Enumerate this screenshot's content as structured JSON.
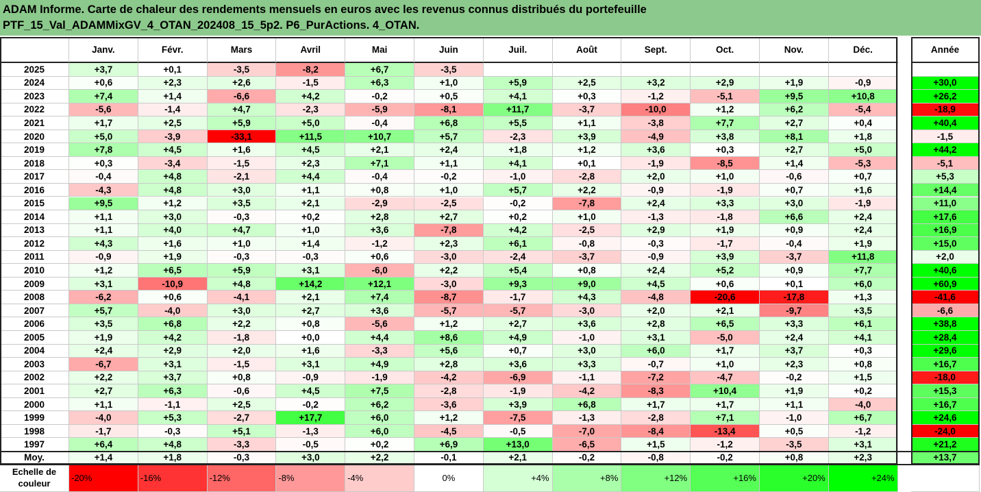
{
  "title": {
    "line1": "ADAM Informe. Carte de chaleur des rendements mensuels en euros avec les revenus connus distribués du portefeuille",
    "line2": "PTF_15_Val_ADAMMixGV_4_OTAN_202408_15_5p2. P6_PurActions. 4_OTAN."
  },
  "colors": {
    "header_band": "#8cc98c",
    "negative_max": "#ff0000",
    "neutral": "#ffffff",
    "positive_max": "#00ff00"
  },
  "chart_data": {
    "type": "heatmap",
    "months": [
      "Janv.",
      "Févr.",
      "Mars",
      "Avril",
      "Mai",
      "Juin",
      "Juil.",
      "Août",
      "Sept.",
      "Oct.",
      "Nov.",
      "Déc."
    ],
    "year_column_label": "Année",
    "rows": [
      {
        "year": "2025",
        "values": [
          "+3,7",
          "+0,1",
          "-3,5",
          "-8,2",
          "+6,7",
          "-3,5",
          "",
          "",
          "",
          "",
          "",
          ""
        ],
        "annual": ""
      },
      {
        "year": "2024",
        "values": [
          "+0,6",
          "+2,3",
          "+2,6",
          "-1,5",
          "+6,3",
          "+1,0",
          "+5,9",
          "+2,5",
          "+3,2",
          "+2,9",
          "+1,9",
          "-0,9"
        ],
        "annual": "+30,0"
      },
      {
        "year": "2023",
        "values": [
          "+7,4",
          "+1,4",
          "-6,6",
          "+4,2",
          "-0,2",
          "+0,5",
          "+4,1",
          "+0,3",
          "-1,2",
          "-5,1",
          "+9,5",
          "+10,8"
        ],
        "annual": "+26,2"
      },
      {
        "year": "2022",
        "values": [
          "-5,6",
          "-1,4",
          "+4,7",
          "-2,3",
          "-5,9",
          "-8,1",
          "+11,7",
          "-3,7",
          "-10,0",
          "+1,2",
          "+6,2",
          "-5,4"
        ],
        "annual": "-18,9"
      },
      {
        "year": "2021",
        "values": [
          "+1,7",
          "+2,5",
          "+5,9",
          "+5,0",
          "-0,4",
          "+6,8",
          "+5,5",
          "+1,1",
          "-3,8",
          "+7,7",
          "+2,7",
          "+0,4"
        ],
        "annual": "+40,4"
      },
      {
        "year": "2020",
        "values": [
          "+5,0",
          "-3,9",
          "-33,1",
          "+11,5",
          "+10,7",
          "+5,7",
          "-2,3",
          "+3,9",
          "-4,9",
          "+3,8",
          "+8,1",
          "+1,8"
        ],
        "annual": "-1,5"
      },
      {
        "year": "2019",
        "values": [
          "+7,8",
          "+4,5",
          "+1,6",
          "+4,5",
          "+2,1",
          "+2,4",
          "+1,8",
          "+1,2",
          "+3,6",
          "+0,3",
          "+2,7",
          "+5,0"
        ],
        "annual": "+44,2"
      },
      {
        "year": "2018",
        "values": [
          "+0,3",
          "-3,4",
          "-1,5",
          "+2,3",
          "+7,1",
          "+1,1",
          "+4,1",
          "+0,1",
          "-1,9",
          "-8,5",
          "+1,4",
          "-5,3"
        ],
        "annual": "-5,1"
      },
      {
        "year": "2017",
        "values": [
          "-0,4",
          "+4,8",
          "-2,1",
          "+4,4",
          "-0,4",
          "-0,2",
          "-1,0",
          "-2,8",
          "+2,0",
          "+1,0",
          "-0,6",
          "+0,7"
        ],
        "annual": "+5,3"
      },
      {
        "year": "2016",
        "values": [
          "-4,3",
          "+4,8",
          "+3,0",
          "+1,1",
          "+0,8",
          "+1,0",
          "+5,7",
          "+2,2",
          "-0,9",
          "-1,9",
          "+0,7",
          "+1,6"
        ],
        "annual": "+14,4"
      },
      {
        "year": "2015",
        "values": [
          "+9,5",
          "+1,2",
          "+3,5",
          "+2,1",
          "-2,9",
          "-2,5",
          "-0,2",
          "-7,8",
          "+2,4",
          "+3,3",
          "+3,0",
          "-1,9"
        ],
        "annual": "+11,0"
      },
      {
        "year": "2014",
        "values": [
          "+1,1",
          "+3,0",
          "-0,3",
          "+0,2",
          "+2,8",
          "+2,7",
          "+0,2",
          "+1,0",
          "-1,3",
          "-1,8",
          "+6,6",
          "+2,4"
        ],
        "annual": "+17,6"
      },
      {
        "year": "2013",
        "values": [
          "+1,1",
          "+4,0",
          "+4,7",
          "+1,0",
          "+3,6",
          "-7,8",
          "+4,2",
          "-2,5",
          "+2,9",
          "+1,9",
          "+0,9",
          "+2,4"
        ],
        "annual": "+16,9"
      },
      {
        "year": "2012",
        "values": [
          "+4,3",
          "+1,6",
          "+1,0",
          "+1,4",
          "-1,2",
          "+2,3",
          "+6,1",
          "-0,8",
          "-0,3",
          "-1,7",
          "-0,4",
          "+1,9"
        ],
        "annual": "+15,0"
      },
      {
        "year": "2011",
        "values": [
          "-0,9",
          "+1,9",
          "-0,3",
          "-0,3",
          "+0,6",
          "-3,0",
          "-2,4",
          "-3,7",
          "-0,9",
          "+3,9",
          "-3,7",
          "+11,8"
        ],
        "annual": "+2,0"
      },
      {
        "year": "2010",
        "values": [
          "+1,2",
          "+6,5",
          "+5,9",
          "+3,1",
          "-6,0",
          "+2,2",
          "+5,4",
          "+0,8",
          "+2,4",
          "+5,2",
          "+0,9",
          "+7,7"
        ],
        "annual": "+40,6"
      },
      {
        "year": "2009",
        "values": [
          "+3,1",
          "-10,9",
          "+4,8",
          "+14,2",
          "+12,1",
          "-3,0",
          "+9,3",
          "+9,0",
          "+4,5",
          "+0,6",
          "+0,1",
          "+6,0"
        ],
        "annual": "+60,9"
      },
      {
        "year": "2008",
        "values": [
          "-6,2",
          "+0,6",
          "-4,1",
          "+2,1",
          "+7,4",
          "-8,7",
          "-1,7",
          "+4,3",
          "-4,8",
          "-20,6",
          "-17,8",
          "+1,3"
        ],
        "annual": "-41,6"
      },
      {
        "year": "2007",
        "values": [
          "+5,7",
          "-4,0",
          "+3,0",
          "+2,7",
          "+3,6",
          "-5,7",
          "-5,7",
          "-3,0",
          "+2,0",
          "+2,1",
          "-9,7",
          "+3,5"
        ],
        "annual": "-6,6"
      },
      {
        "year": "2006",
        "values": [
          "+3,5",
          "+6,8",
          "+2,2",
          "+0,8",
          "-5,6",
          "+1,2",
          "+2,7",
          "+3,6",
          "+2,8",
          "+6,5",
          "+3,3",
          "+6,1"
        ],
        "annual": "+38,8"
      },
      {
        "year": "2005",
        "values": [
          "+1,9",
          "+4,2",
          "-1,8",
          "+0,0",
          "+4,4",
          "+8,6",
          "+4,9",
          "-1,0",
          "+3,1",
          "-5,0",
          "+2,4",
          "+4,1"
        ],
        "annual": "+28,4"
      },
      {
        "year": "2004",
        "values": [
          "+2,4",
          "+2,9",
          "+2,0",
          "+1,6",
          "-3,3",
          "+5,6",
          "+0,7",
          "+3,0",
          "+6,0",
          "+1,7",
          "+3,7",
          "+0,3"
        ],
        "annual": "+29,6"
      },
      {
        "year": "2003",
        "values": [
          "-6,7",
          "+3,1",
          "-1,5",
          "+3,1",
          "+4,9",
          "+2,8",
          "+3,6",
          "+3,3",
          "-0,7",
          "+1,0",
          "+2,3",
          "+0,8"
        ],
        "annual": "+16,7"
      },
      {
        "year": "2002",
        "values": [
          "+2,2",
          "+3,7",
          "+0,8",
          "-0,9",
          "-1,9",
          "-4,2",
          "-6,9",
          "-1,1",
          "-7,2",
          "-4,7",
          "-0,2",
          "+1,5"
        ],
        "annual": "-18,0"
      },
      {
        "year": "2001",
        "values": [
          "+2,7",
          "+6,3",
          "-0,6",
          "+4,5",
          "+7,5",
          "-2,8",
          "-1,9",
          "-4,2",
          "-8,3",
          "+10,4",
          "+1,9",
          "+0,2"
        ],
        "annual": "+15,3"
      },
      {
        "year": "2000",
        "values": [
          "+1,1",
          "-1,1",
          "+2,5",
          "-0,2",
          "+6,2",
          "-3,6",
          "+3,9",
          "+6,8",
          "+1,7",
          "+1,7",
          "+1,1",
          "-4,0"
        ],
        "annual": "+16,7"
      },
      {
        "year": "1999",
        "values": [
          "-4,0",
          "+5,3",
          "-2,7",
          "+17,7",
          "+6,0",
          "+1,2",
          "-7,5",
          "-1,3",
          "-2,8",
          "+7,1",
          "-1,0",
          "+6,7"
        ],
        "annual": "+24,6"
      },
      {
        "year": "1998",
        "values": [
          "-1,7",
          "-0,3",
          "+5,1",
          "-1,3",
          "+6,0",
          "-4,5",
          "-0,5",
          "-7,0",
          "-8,4",
          "-13,4",
          "+0,5",
          "-1,2"
        ],
        "annual": "-24,0"
      },
      {
        "year": "1997",
        "values": [
          "+6,4",
          "+4,8",
          "-3,3",
          "-0,5",
          "+0,2",
          "+6,9",
          "+13,0",
          "-6,5",
          "+1,5",
          "-1,2",
          "-3,5",
          "+3,1"
        ],
        "annual": "+21,2"
      }
    ],
    "average": {
      "label": "Moy.",
      "values": [
        "+1,4",
        "+1,8",
        "-0,3",
        "+3,0",
        "+2,2",
        "-0,1",
        "+2,1",
        "-0,2",
        "-0,8",
        "-0,2",
        "+0,8",
        "+2,3"
      ],
      "annual": "+13,7"
    },
    "color_scale": {
      "label": "Echelle de couleur",
      "stops": [
        "-20%",
        "-16%",
        "-12%",
        "-8%",
        "-4%",
        "0%",
        "+4%",
        "+8%",
        "+12%",
        "+16%",
        "+20%",
        "+24%"
      ]
    }
  }
}
